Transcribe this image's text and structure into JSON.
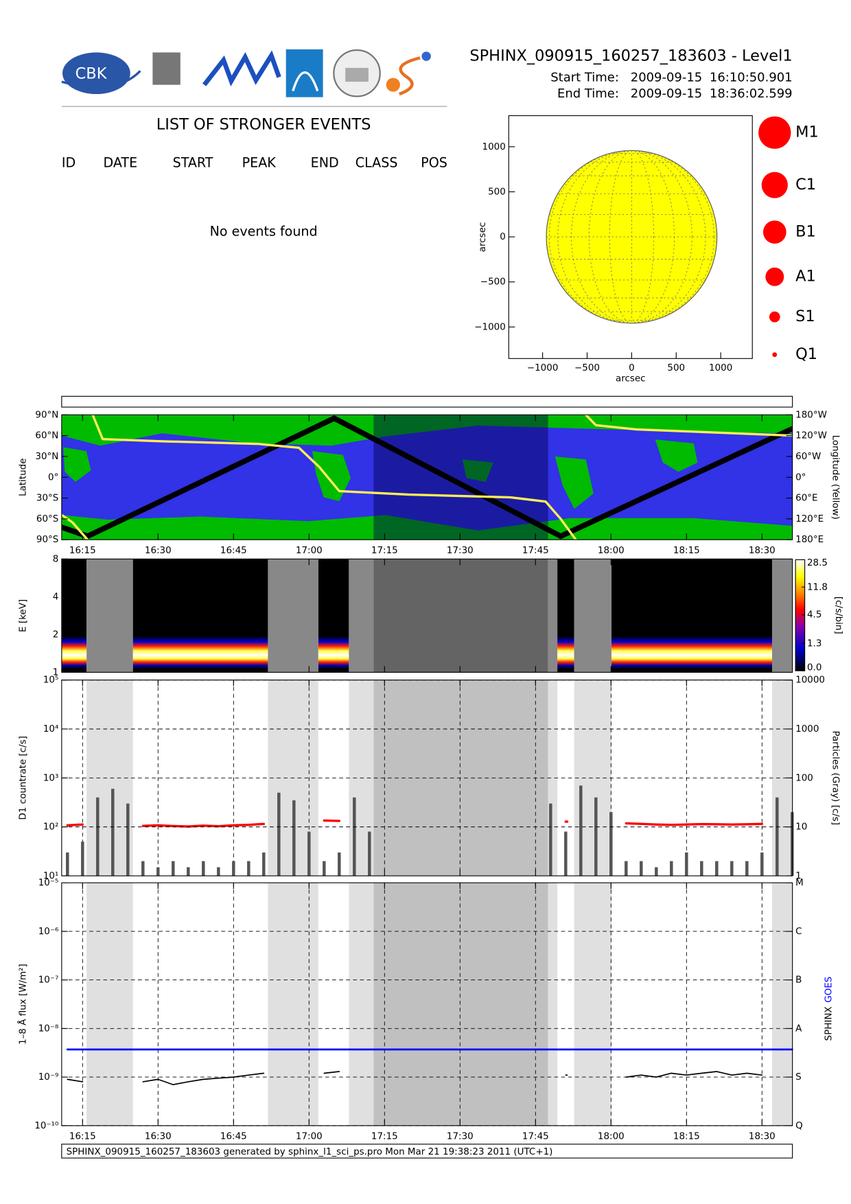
{
  "header": {
    "title": "SPHINX_090915_160257_183603 - Level1",
    "start_label": "Start Time:",
    "start_date": "2009-09-15",
    "start_time": "16:10:50.901",
    "end_label": "End Time:",
    "end_date": "2009-09-15",
    "end_time": "18:36:02.599",
    "logo_text": "CBK"
  },
  "events": {
    "title": "LIST OF STRONGER EVENTS",
    "columns": [
      "ID",
      "DATE",
      "START",
      "PEAK",
      "END",
      "CLASS",
      "POS"
    ],
    "message": "No events found"
  },
  "chart_data": [
    {
      "type": "disk",
      "xlabel": "arcsec",
      "ylabel": "arcsec",
      "xlim": [
        -1380,
        1355
      ],
      "ylim": [
        -1350,
        1345
      ],
      "xticks": [
        {
          "value": -1000,
          "label": "−1000"
        },
        {
          "value": -500,
          "label": "−500"
        },
        0,
        500,
        1000
      ],
      "yticks": [
        {
          "value": -1000,
          "label": "−1000"
        },
        {
          "value": -500,
          "label": "−500"
        },
        0,
        500,
        1000
      ],
      "disk_radius": 958,
      "color": "#ffff00",
      "classes": [
        "M1",
        "C1",
        "B1",
        "A1",
        "S1",
        "Q1"
      ],
      "class_color": "#ff0000"
    },
    {
      "type": "map",
      "ylabel": "Latitude",
      "y2label": "Longitude (Yellow)",
      "xlim": [
        "16:10:50.901",
        "18:36:02.599"
      ],
      "xticks": [
        "16:15",
        "16:30",
        "16:45",
        "17:00",
        "17:15",
        "17:30",
        "17:45",
        "18:00",
        "18:15",
        "18:30"
      ],
      "ylim": [
        -90,
        90
      ],
      "yticks": [
        {
          "value": -90,
          "label": "90°S"
        },
        {
          "value": -60,
          "label": "60°S"
        },
        {
          "value": -30,
          "label": "30°S"
        },
        {
          "value": 0,
          "label": "0°"
        },
        {
          "value": 30,
          "label": "30°N"
        },
        {
          "value": 60,
          "label": "60°N"
        },
        {
          "value": 90,
          "label": "90°N"
        }
      ],
      "y2lim": [
        180,
        -180
      ],
      "y2ticks": [
        {
          "value": -180,
          "label": "180°W"
        },
        {
          "value": -120,
          "label": "120°W"
        },
        {
          "value": -60,
          "label": "60°W"
        },
        {
          "value": 0,
          "label": "0°"
        },
        {
          "value": 60,
          "label": "60°E"
        },
        {
          "value": 120,
          "label": "120°E"
        },
        {
          "value": 180,
          "label": "180°E"
        }
      ],
      "shade": [
        {
          "from": "17:12:50",
          "to": "17:47:30",
          "color": "#000050"
        }
      ],
      "series": [
        {
          "color": "#000000",
          "x": [
            "16:10:50.901",
            "16:16",
            "17:05",
            "17:50",
            "18:36:02.599"
          ],
          "values": [
            -72,
            -85,
            85,
            -85,
            70
          ]
        },
        {
          "color": "#ffee55",
          "axis": "y2",
          "x": [
            "16:11",
            "16:13",
            "16:16",
            "16:17",
            "16:17",
            "16:19",
            "16:30",
            "16:50",
            "16:58",
            "17:02",
            "17:06",
            "17:20",
            "17:40",
            "17:47",
            "17:50",
            "17:53",
            "17:54",
            "17:55",
            "17:57",
            "18:05",
            "18:36"
          ],
          "values": [
            110,
            130,
            180,
            null,
            -180,
            -110,
            -104,
            -96,
            -85,
            -30,
            40,
            50,
            58,
            70,
            120,
            180,
            null,
            -180,
            -150,
            -138,
            -120
          ]
        }
      ]
    },
    {
      "type": "spectrogram",
      "ylabel": "E [keV]",
      "ylog": true,
      "ylim": [
        1,
        8
      ],
      "yticks": [
        1,
        2,
        4,
        8
      ],
      "xlim": [
        "16:10:50.901",
        "18:36:02.599"
      ],
      "xticks": [
        "16:15",
        "16:30",
        "16:45",
        "17:00",
        "17:15",
        "17:30",
        "17:45",
        "18:00",
        "18:15",
        "18:30"
      ],
      "xticklabels": false,
      "zlim": [
        0,
        28.5
      ],
      "zscale": "log1p",
      "zticks": [
        {
          "value": 0,
          "label": "0.0"
        },
        1.3,
        4.5,
        11.8,
        28.5
      ],
      "zlabel": "[c/s/bin]",
      "shade": [
        {
          "from": "16:15:48",
          "to": "16:25:00",
          "color": "#888888"
        },
        {
          "from": "16:51:50",
          "to": "17:01:50",
          "color": "#888888"
        },
        {
          "from": "17:07:55",
          "to": "17:12:50",
          "color": "#888888"
        },
        {
          "from": "17:12:50",
          "to": "17:47:30",
          "color": "#646464"
        },
        {
          "from": "17:47:30",
          "to": "17:49:20",
          "color": "#888888"
        },
        {
          "from": "17:52:40",
          "to": "18:00:05",
          "color": "#888888"
        },
        {
          "from": "18:32:00",
          "to": "18:36:02.599",
          "color": "#888888"
        }
      ]
    },
    {
      "type": "line",
      "ylabel": "D1 countrate [c/s]",
      "y2label": "Particles (Gray) [c/s]",
      "ylog": true,
      "ylim": [
        10,
        100000
      ],
      "yticks": [
        {
          "value": 10,
          "label": "10¹"
        },
        {
          "value": 100,
          "label": "10²"
        },
        {
          "value": 1000,
          "label": "10³"
        },
        {
          "value": 10000,
          "label": "10⁴"
        },
        {
          "value": 100000,
          "label": "10⁵"
        }
      ],
      "y2log": true,
      "y2lim": [
        1,
        10000
      ],
      "y2ticks": [
        1,
        10,
        100,
        1000,
        10000
      ],
      "grid": true,
      "xlim": [
        "16:10:50.901",
        "18:36:02.599"
      ],
      "xticks": [
        "16:15",
        "16:30",
        "16:45",
        "17:00",
        "17:15",
        "17:30",
        "17:45",
        "18:00",
        "18:15",
        "18:30"
      ],
      "xticklabels": false,
      "shade": [
        {
          "from": "16:15:48",
          "to": "16:25:00",
          "color": "#e0e0e0"
        },
        {
          "from": "16:51:50",
          "to": "17:01:50",
          "color": "#e0e0e0"
        },
        {
          "from": "17:07:55",
          "to": "17:12:50",
          "color": "#e0e0e0"
        },
        {
          "from": "17:12:50",
          "to": "17:47:30",
          "color": "#c0c0c0"
        },
        {
          "from": "17:47:30",
          "to": "17:49:20",
          "color": "#e0e0e0"
        },
        {
          "from": "17:52:40",
          "to": "18:00:05",
          "color": "#e0e0e0"
        },
        {
          "from": "18:32:00",
          "to": "18:36:02.599",
          "color": "#e0e0e0"
        }
      ],
      "x": [
        "16:12",
        "16:15",
        "16:18",
        "16:21",
        "16:24",
        "16:27",
        "16:30",
        "16:33",
        "16:36",
        "16:39",
        "16:42",
        "16:45",
        "16:48",
        "16:51",
        "16:54",
        "16:57",
        "17:00",
        "17:03",
        "17:06",
        "17:09",
        "17:12",
        "17:15",
        "17:18",
        "17:21",
        "17:24",
        "17:27",
        "17:30",
        "17:33",
        "17:36",
        "17:39",
        "17:42",
        "17:45",
        "17:48",
        "17:51",
        "17:54",
        "17:57",
        "18:00",
        "18:03",
        "18:06",
        "18:09",
        "18:12",
        "18:15",
        "18:18",
        "18:21",
        "18:24",
        "18:27",
        "18:30",
        "18:33",
        "18:36"
      ],
      "series": [
        {
          "color": "#ff0000",
          "values": [
            108,
            112,
            null,
            null,
            null,
            105,
            108,
            104,
            102,
            106,
            103,
            108,
            110,
            115,
            null,
            null,
            null,
            135,
            132,
            null,
            null,
            null,
            null,
            null,
            null,
            null,
            null,
            null,
            null,
            null,
            null,
            null,
            null,
            128,
            null,
            null,
            null,
            118,
            115,
            112,
            110,
            112,
            114,
            113,
            112,
            113,
            115,
            null,
            null
          ]
        },
        {
          "color": "#555555",
          "axis": "y2",
          "style": "spikes",
          "values": [
            3,
            5,
            40,
            60,
            30,
            2,
            1.5,
            2,
            1.5,
            2,
            1.5,
            2,
            2,
            3,
            50,
            35,
            8,
            2,
            3,
            40,
            8,
            null,
            null,
            null,
            null,
            null,
            null,
            null,
            null,
            null,
            null,
            null,
            30,
            8,
            70,
            40,
            20,
            2,
            2,
            1.5,
            2,
            3,
            2,
            2,
            2,
            2,
            3,
            40,
            20
          ]
        }
      ]
    },
    {
      "type": "line",
      "ylabel": "1–8 Å flux [W/m²]",
      "ylog": true,
      "ylim": [
        1e-10,
        1e-05
      ],
      "yticks": [
        {
          "value": 1e-10,
          "label": "10⁻¹⁰"
        },
        {
          "value": 1e-09,
          "label": "10⁻⁹"
        },
        {
          "value": 1e-08,
          "label": "10⁻⁸"
        },
        {
          "value": 1e-07,
          "label": "10⁻⁷"
        },
        {
          "value": 1e-06,
          "label": "10⁻⁶"
        },
        {
          "value": 1e-05,
          "label": "10⁻⁵"
        }
      ],
      "y2log": true,
      "y2lim": [
        1e-10,
        1e-05
      ],
      "y2ticks": [
        {
          "value": 1e-10,
          "label": "Q"
        },
        {
          "value": 1e-09,
          "label": "S"
        },
        {
          "value": 1e-08,
          "label": "A"
        },
        {
          "value": 1e-07,
          "label": "B"
        },
        {
          "value": 1e-06,
          "label": "C"
        },
        {
          "value": 1e-05,
          "label": "M"
        }
      ],
      "grid": true,
      "xlim": [
        "16:10:50.901",
        "18:36:02.599"
      ],
      "xticks": [
        "16:15",
        "16:30",
        "16:45",
        "17:00",
        "17:15",
        "17:30",
        "17:45",
        "18:00",
        "18:15",
        "18:30"
      ],
      "shade": [
        {
          "from": "16:15:48",
          "to": "16:25:00",
          "color": "#e0e0e0"
        },
        {
          "from": "16:51:50",
          "to": "17:01:50",
          "color": "#e0e0e0"
        },
        {
          "from": "17:07:55",
          "to": "17:12:50",
          "color": "#e0e0e0"
        },
        {
          "from": "17:12:50",
          "to": "17:47:30",
          "color": "#c0c0c0"
        },
        {
          "from": "17:47:30",
          "to": "17:49:20",
          "color": "#e0e0e0"
        },
        {
          "from": "17:52:40",
          "to": "18:00:05",
          "color": "#e0e0e0"
        },
        {
          "from": "18:32:00",
          "to": "18:36:02.599",
          "color": "#e0e0e0"
        }
      ],
      "x": [
        "16:12",
        "16:15",
        "16:18",
        "16:21",
        "16:24",
        "16:27",
        "16:30",
        "16:33",
        "16:36",
        "16:39",
        "16:42",
        "16:45",
        "16:48",
        "16:51",
        "16:54",
        "16:57",
        "17:00",
        "17:03",
        "17:06",
        "17:09",
        "17:12",
        "17:15",
        "17:18",
        "17:21",
        "17:24",
        "17:27",
        "17:30",
        "17:33",
        "17:36",
        "17:39",
        "17:42",
        "17:45",
        "17:48",
        "17:51",
        "17:54",
        "17:57",
        "18:00",
        "18:03",
        "18:06",
        "18:09",
        "18:12",
        "18:15",
        "18:18",
        "18:21",
        "18:24",
        "18:27",
        "18:30",
        "18:33",
        "18:36"
      ],
      "series": [
        {
          "name": "SPHINX",
          "color": "#000000",
          "values": [
            9e-10,
            8e-10,
            null,
            null,
            null,
            8e-10,
            9e-10,
            7e-10,
            8e-10,
            9e-10,
            9.5e-10,
            1e-09,
            1.1e-09,
            1.2e-09,
            null,
            null,
            null,
            1.2e-09,
            1.3e-09,
            null,
            null,
            null,
            null,
            null,
            null,
            null,
            null,
            null,
            null,
            null,
            null,
            null,
            null,
            1.1e-09,
            null,
            null,
            null,
            1e-09,
            1.1e-09,
            1e-09,
            1.2e-09,
            1.1e-09,
            1.2e-09,
            1.3e-09,
            1.1e-09,
            1.2e-09,
            1.1e-09,
            null,
            null
          ]
        },
        {
          "name": "GOES",
          "color": "#0000ff",
          "values": [
            3.7e-09,
            3.7e-09,
            3.7e-09,
            3.7e-09,
            3.7e-09,
            3.7e-09,
            3.7e-09,
            3.7e-09,
            3.7e-09,
            3.7e-09,
            3.7e-09,
            3.7e-09,
            3.7e-09,
            3.7e-09,
            3.7e-09,
            3.7e-09,
            3.7e-09,
            3.7e-09,
            3.7e-09,
            3.7e-09,
            3.7e-09,
            3.7e-09,
            3.7e-09,
            3.7e-09,
            3.7e-09,
            3.7e-09,
            3.7e-09,
            3.7e-09,
            3.7e-09,
            3.7e-09,
            3.7e-09,
            3.7e-09,
            3.7e-09,
            3.7e-09,
            3.7e-09,
            3.7e-09,
            3.7e-09,
            3.7e-09,
            3.7e-09,
            3.7e-09,
            3.7e-09,
            3.7e-09,
            3.7e-09,
            3.7e-09,
            3.7e-09,
            3.7e-09,
            3.7e-09,
            3.7e-09,
            3.7e-09
          ]
        }
      ]
    }
  ],
  "footer": {
    "text": "SPHINX_090915_160257_183603 generated by sphinx_l1_sci_ps.pro Mon Mar 21 19:38:23 2011 (UTC+1)"
  }
}
